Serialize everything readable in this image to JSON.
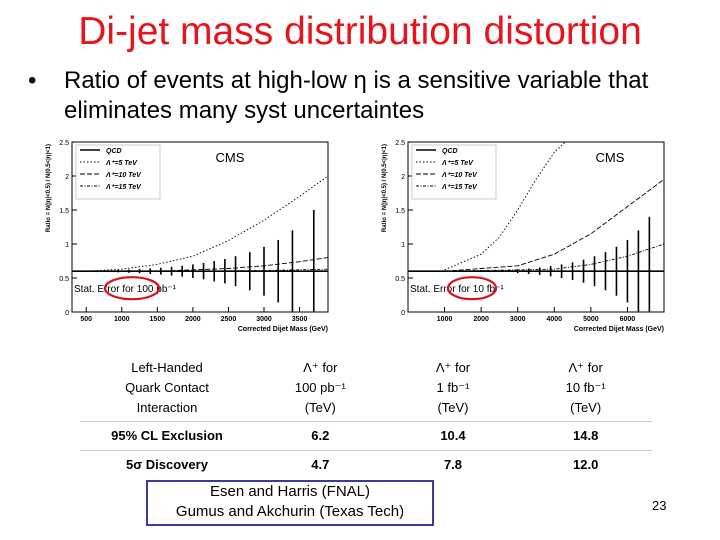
{
  "slide": {
    "title": "Di-jet mass distribution distortion",
    "bullet": "Ratio of events at high-low η is a sensitive variable that eliminates many syst uncertaintes",
    "page_number": "23",
    "credits": [
      "Esen and Harris (FNAL)",
      "Gumus and Akchurin (Texas Tech)"
    ]
  },
  "chart_data": [
    {
      "type": "line",
      "label": "CMS",
      "xlabel": "Corrected Dijet Mass (GeV)",
      "ylabel": "Ratio = N(|η|<0.5) / N(0.5<|η|<1)",
      "xlim": [
        300,
        3900
      ],
      "ylim": [
        0,
        2.5
      ],
      "xticks": [
        "500",
        "1000",
        "1500",
        "2000",
        "2500",
        "3000",
        "3500"
      ],
      "yticks": [
        "0",
        "0.5",
        "1",
        "1.5",
        "2",
        "2.5"
      ],
      "legend": [
        "QCD",
        "Λ⁺=5 TeV",
        "Λ⁺=10 TeV",
        "Λ⁺=15 TeV"
      ],
      "legend_placement": "top-left",
      "annotation": "Stat. Error for 100 pb⁻¹",
      "qcd_ratio": 0.6,
      "series": [
        {
          "name": "Λ⁺=5 TeV",
          "x": [
            500,
            1000,
            1500,
            2000,
            2500,
            3000,
            3500,
            3900
          ],
          "y": [
            0.6,
            0.63,
            0.7,
            0.82,
            1.05,
            1.35,
            1.7,
            2.0
          ]
        },
        {
          "name": "Λ⁺=10 TeV",
          "x": [
            500,
            1500,
            2500,
            3000,
            3500,
            3900
          ],
          "y": [
            0.6,
            0.6,
            0.64,
            0.68,
            0.74,
            0.8
          ]
        },
        {
          "name": "Λ⁺=15 TeV",
          "x": [
            500,
            2000,
            3000,
            3900
          ],
          "y": [
            0.6,
            0.6,
            0.61,
            0.63
          ]
        }
      ],
      "error_bars": {
        "x": [
          500,
          650,
          800,
          950,
          1100,
          1250,
          1400,
          1550,
          1700,
          1850,
          2000,
          2150,
          2300,
          2450,
          2600,
          2800,
          3000,
          3200,
          3400,
          3700
        ],
        "half_width": [
          0.005,
          0.008,
          0.012,
          0.017,
          0.023,
          0.03,
          0.04,
          0.05,
          0.065,
          0.08,
          0.1,
          0.12,
          0.15,
          0.18,
          0.22,
          0.28,
          0.36,
          0.46,
          0.6,
          0.9
        ]
      }
    },
    {
      "type": "line",
      "label": "CMS",
      "xlabel": "Corrected Dijet Mass (GeV)",
      "ylabel": "Ratio = N(|η|<0.5) / N(0.5<|η|<1)",
      "xlim": [
        0,
        7000
      ],
      "ylim": [
        0,
        2.5
      ],
      "xticks": [
        "1000",
        "2000",
        "3000",
        "4000",
        "5000",
        "6000"
      ],
      "yticks": [
        "0",
        "0.5",
        "1",
        "1.5",
        "2",
        "2.5"
      ],
      "legend": [
        "QCD",
        "Λ⁺=5 TeV",
        "Λ⁺=10 TeV",
        "Λ⁺=15 TeV"
      ],
      "legend_placement": "top-left",
      "annotation": "Stat. Error for 10 fb⁻¹",
      "qcd_ratio": 0.6,
      "series": [
        {
          "name": "Λ⁺=5 TeV",
          "x": [
            1000,
            2000,
            2500,
            3000,
            3500,
            4000,
            4300
          ],
          "y": [
            0.62,
            0.85,
            1.1,
            1.5,
            1.95,
            2.35,
            2.5
          ]
        },
        {
          "name": "Λ⁺=10 TeV",
          "x": [
            1000,
            3000,
            4000,
            5000,
            6000,
            7000
          ],
          "y": [
            0.6,
            0.68,
            0.85,
            1.15,
            1.55,
            1.95
          ]
        },
        {
          "name": "Λ⁺=15 TeV",
          "x": [
            1000,
            4000,
            5000,
            6000,
            7000
          ],
          "y": [
            0.6,
            0.63,
            0.7,
            0.82,
            1.0
          ]
        }
      ],
      "error_bars": {
        "x": [
          3000,
          3300,
          3600,
          3900,
          4200,
          4500,
          4800,
          5100,
          5400,
          5700,
          6000,
          6300,
          6600
        ],
        "half_width": [
          0.03,
          0.04,
          0.055,
          0.075,
          0.1,
          0.13,
          0.17,
          0.22,
          0.28,
          0.36,
          0.46,
          0.6,
          0.8
        ]
      }
    }
  ],
  "table": {
    "header": [
      "Left-Handed\nQuark Contact\nInteraction",
      "Λ⁺ for\n100 pb⁻¹\n(TeV)",
      "Λ⁺ for\n1 fb⁻¹\n(TeV)",
      "Λ⁺ for\n10 fb⁻¹\n(TeV)"
    ],
    "rows": [
      [
        "95% CL  Exclusion",
        "6.2",
        "10.4",
        "14.8"
      ],
      [
        "5σ  Discovery",
        "4.7",
        "7.8",
        "12.0"
      ]
    ]
  }
}
